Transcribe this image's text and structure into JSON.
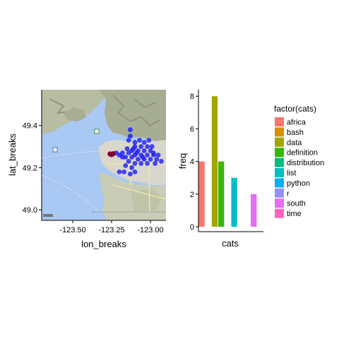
{
  "chart_data": [
    {
      "type": "scatter",
      "xlabel": "lon_breaks",
      "ylabel": "lat_breaks",
      "xlim": [
        -123.7,
        -122.9
      ],
      "ylim": [
        48.95,
        49.57
      ],
      "xticks": [
        -123.5,
        -123.25,
        -123.0
      ],
      "xtick_labels": [
        "-123.50",
        "-123.25",
        "-123.00"
      ],
      "yticks": [
        49.0,
        49.2,
        49.4
      ],
      "ytick_labels": [
        "49.0",
        "49.2",
        "49.4"
      ],
      "background": "basemap",
      "point_color": "#1a1aff",
      "highlight_color": "#7a0033",
      "points": [
        [
          -123.13,
          49.38
        ],
        [
          -123.13,
          49.35
        ],
        [
          -123.14,
          49.33
        ],
        [
          -123.1,
          49.32
        ],
        [
          -123.07,
          49.33
        ],
        [
          -123.04,
          49.32
        ],
        [
          -123.01,
          49.33
        ],
        [
          -123.1,
          49.3
        ],
        [
          -123.06,
          49.3
        ],
        [
          -123.02,
          49.3
        ],
        [
          -122.99,
          49.3
        ],
        [
          -123.15,
          49.29
        ],
        [
          -123.12,
          49.28
        ],
        [
          -123.08,
          49.28
        ],
        [
          -123.04,
          49.28
        ],
        [
          -123.0,
          49.28
        ],
        [
          -123.18,
          49.27
        ],
        [
          -123.14,
          49.27
        ],
        [
          -123.1,
          49.26
        ],
        [
          -123.06,
          49.26
        ],
        [
          -123.02,
          49.26
        ],
        [
          -122.98,
          49.26
        ],
        [
          -123.16,
          49.25
        ],
        [
          -123.12,
          49.25
        ],
        [
          -123.08,
          49.24
        ],
        [
          -123.04,
          49.24
        ],
        [
          -123.0,
          49.24
        ],
        [
          -122.96,
          49.24
        ],
        [
          -123.2,
          49.26
        ],
        [
          -123.22,
          49.27
        ],
        [
          -123.18,
          49.25
        ],
        [
          -123.14,
          49.23
        ],
        [
          -123.1,
          49.22
        ],
        [
          -123.06,
          49.22
        ],
        [
          -123.02,
          49.22
        ],
        [
          -122.97,
          49.22
        ],
        [
          -122.93,
          49.23
        ],
        [
          -123.16,
          49.21
        ],
        [
          -123.12,
          49.2
        ],
        [
          -123.1,
          49.18
        ],
        [
          -123.17,
          49.18
        ],
        [
          -123.2,
          49.18
        ],
        [
          -123.13,
          49.17
        ],
        [
          -122.98,
          49.27
        ],
        [
          -122.95,
          49.26
        ],
        [
          -123.11,
          49.29
        ],
        [
          -123.05,
          49.25
        ],
        [
          -123.09,
          49.27
        ]
      ],
      "highlight_points": [
        [
          -123.26,
          49.265
        ],
        [
          -123.25,
          49.262
        ],
        [
          -123.24,
          49.266
        ]
      ]
    },
    {
      "type": "bar",
      "xlabel": "cats",
      "ylabel": "freq",
      "ylim": [
        -0.3,
        8.4
      ],
      "yticks": [
        0,
        2,
        4,
        6,
        8
      ],
      "legend_title": "factor(cats)",
      "legend_position": "right",
      "categories": [
        "africa",
        "bash",
        "data",
        "definition",
        "distribution",
        "list",
        "python",
        "r",
        "south",
        "time"
      ],
      "values": [
        4,
        0,
        8,
        4,
        0,
        3,
        0,
        0,
        2,
        0
      ],
      "colors": [
        "#F8766D",
        "#D89000",
        "#A3A500",
        "#39B600",
        "#00BF7D",
        "#00BFC4",
        "#00B0F6",
        "#9590FF",
        "#E76BF3",
        "#FF62BC"
      ]
    }
  ]
}
